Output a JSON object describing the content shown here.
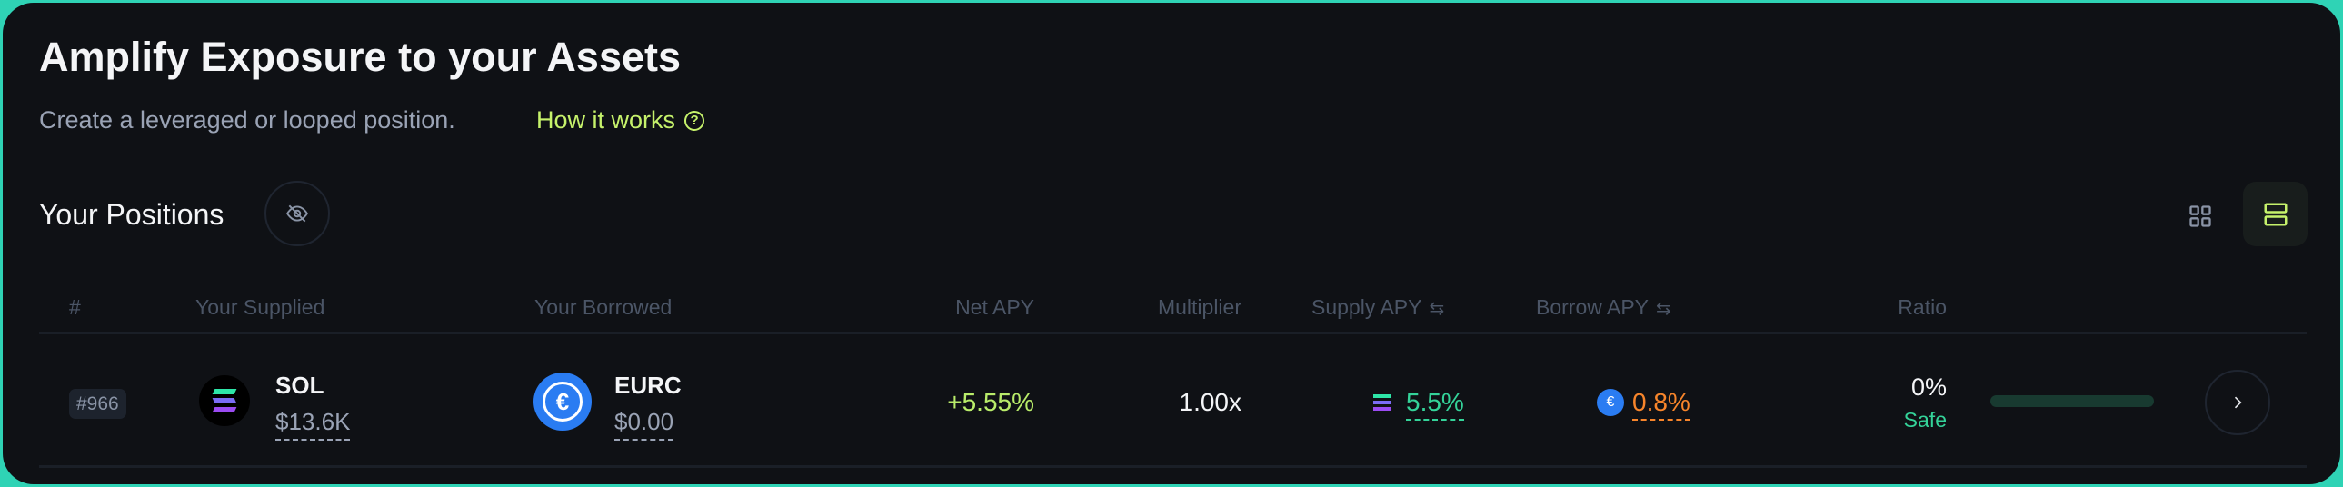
{
  "header": {
    "title": "Amplify Exposure to your Assets",
    "subtitle": "Create a leveraged or looped position.",
    "how_it_works": "How it works"
  },
  "positions": {
    "title": "Your Positions",
    "hide_icon": "eye-off-icon",
    "view_grid_icon": "grid-icon",
    "view_list_icon": "list-icon",
    "active_view": "list"
  },
  "table": {
    "columns": [
      "#",
      "Your Supplied",
      "Your Borrowed",
      "Net APY",
      "Multiplier",
      "Supply APY",
      "Borrow APY",
      "Ratio"
    ],
    "rows": [
      {
        "id": "#966",
        "supplied_token": "SOL",
        "supplied_value": "$13.6K",
        "borrowed_token": "EURC",
        "borrowed_value": "$0.00",
        "net_apy": "+5.55%",
        "multiplier": "1.00x",
        "supply_apy": "5.5%",
        "borrow_apy": "0.8%",
        "ratio": "0%",
        "ratio_status": "Safe",
        "ratio_fill": 0
      }
    ]
  },
  "colors": {
    "accent": "#c6f26b",
    "border": "#2fd3b5",
    "supply": "#34d399",
    "borrow": "#f7852b",
    "background": "#0f1115"
  }
}
